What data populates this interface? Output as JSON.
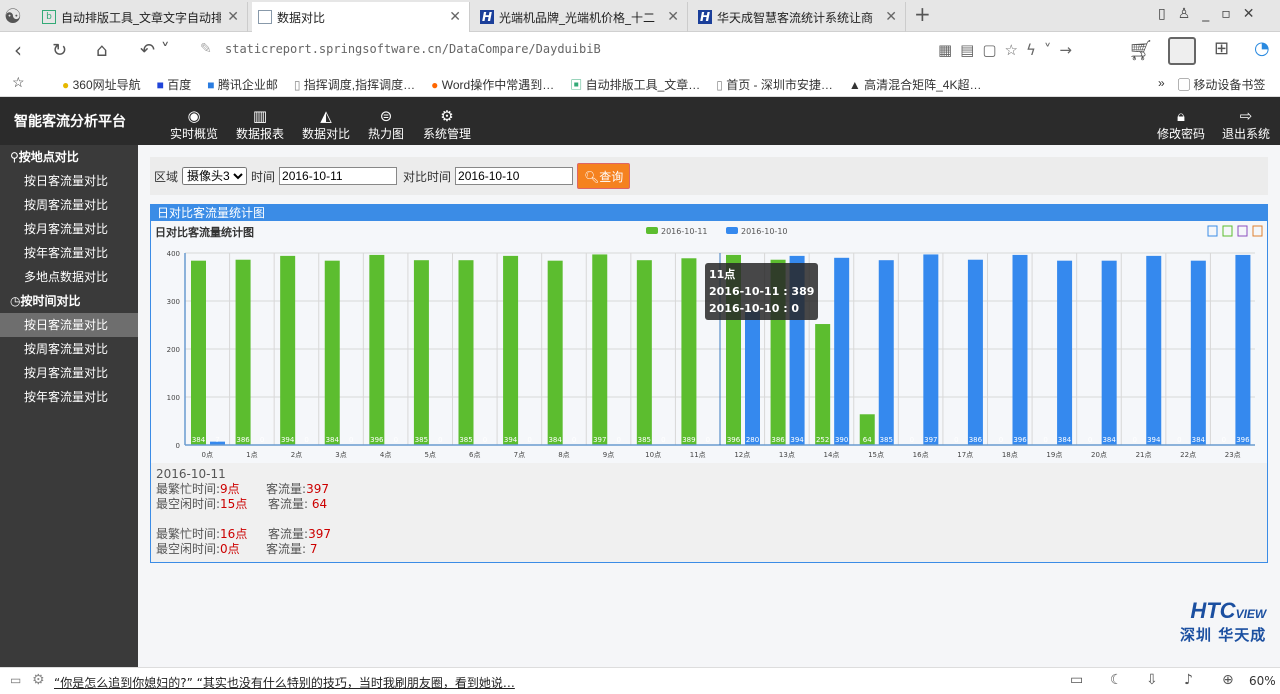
{
  "browser": {
    "tabs": [
      {
        "label": "自动排版工具_文章文字自动排"
      },
      {
        "label": "数据对比",
        "active": true
      },
      {
        "label": "光端机品牌_光端机价格_十二"
      },
      {
        "label": "华天成智慧客流统计系统让商"
      }
    ],
    "url": "staticreport.springsoftware.cn/DataCompare/DayduibiB",
    "bookmarks": [
      "360网址导航",
      "百度",
      "腾讯企业邮",
      "指挥调度,指挥调度…",
      "Word操作中常遇到…",
      "自动排版工具_文章…",
      "首页 - 深圳市安捷…",
      "高清混合矩阵_4K超…"
    ],
    "mobile_bookmarks": "移动设备书签"
  },
  "app": {
    "title": "智能客流分析平台",
    "nav": [
      {
        "label": "实时概览",
        "icon": "eye-icon"
      },
      {
        "label": "数据报表",
        "icon": "bar-chart-icon"
      },
      {
        "label": "数据对比",
        "icon": "area-chart-icon"
      },
      {
        "label": "热力图",
        "icon": "heat-icon"
      },
      {
        "label": "系统管理",
        "icon": "gear-icon"
      }
    ],
    "nav_right": [
      {
        "label": "修改密码",
        "icon": "lock-icon"
      },
      {
        "label": "退出系统",
        "icon": "logout-icon"
      }
    ]
  },
  "sidebar": {
    "groups": [
      {
        "title": "按地点对比",
        "items": [
          "按日客流量对比",
          "按周客流量对比",
          "按月客流量对比",
          "按年客流量对比",
          "多地点数据对比"
        ]
      },
      {
        "title": "按时间对比",
        "items": [
          "按日客流量对比",
          "按周客流量对比",
          "按月客流量对比",
          "按年客流量对比"
        ],
        "active": 0
      }
    ]
  },
  "filter": {
    "area_label": "区域",
    "area_value": "摄像头3",
    "time_label": "时间",
    "time_value": "2016-10-11",
    "compare_label": "对比时间",
    "compare_value": "2016-10-10",
    "query_label": "查询"
  },
  "panel": {
    "header": "日对比客流量统计图"
  },
  "chart_data": {
    "type": "bar",
    "title": "日对比客流量统计图",
    "categories": [
      "0点",
      "1点",
      "2点",
      "3点",
      "4点",
      "5点",
      "6点",
      "7点",
      "8点",
      "9点",
      "10点",
      "11点",
      "12点",
      "13点",
      "14点",
      "15点",
      "16点",
      "17点",
      "18点",
      "19点",
      "20点",
      "21点",
      "22点",
      "23点"
    ],
    "series": [
      {
        "name": "2016-10-11",
        "color": "#5cbd2f",
        "values": [
          384,
          386,
          394,
          384,
          396,
          385,
          385,
          394,
          384,
          397,
          385,
          389,
          396,
          386,
          252,
          64,
          0,
          0,
          0,
          0,
          0,
          0,
          0,
          0
        ]
      },
      {
        "name": "2016-10-10",
        "color": "#3589ee",
        "values": [
          7,
          0,
          0,
          0,
          0,
          0,
          0,
          0,
          0,
          0,
          0,
          0,
          280,
          394,
          390,
          385,
          397,
          386,
          396,
          384,
          384,
          394,
          384,
          396
        ]
      }
    ],
    "ylim": [
      0,
      400
    ],
    "yticks": [
      0,
      100,
      200,
      300,
      400
    ],
    "grid": true,
    "legend": "top-center",
    "tooltip": {
      "title": "11点",
      "lines": [
        "2016-10-11 : 389",
        "2016-10-10 : 0"
      ]
    }
  },
  "summary": {
    "date": "2016-10-11",
    "busy_label": "最繁忙时间:",
    "idle_label": "最空闲时间:",
    "flow_label": "客流量:",
    "day1": {
      "busy_time": "9点",
      "busy_flow": "397",
      "idle_time": "15点",
      "idle_flow": "64"
    },
    "day2": {
      "busy_time": "16点",
      "busy_flow": "397",
      "idle_time": "0点",
      "idle_flow": "7"
    }
  },
  "logo": {
    "brand": "HTCview",
    "sub": "深圳 华天成"
  },
  "status": {
    "news": "“你是怎么追到你媳妇的?” “其实也没有什么特别的技巧，当时我刷朋友圈，看到她说…",
    "zoom": "60%"
  }
}
